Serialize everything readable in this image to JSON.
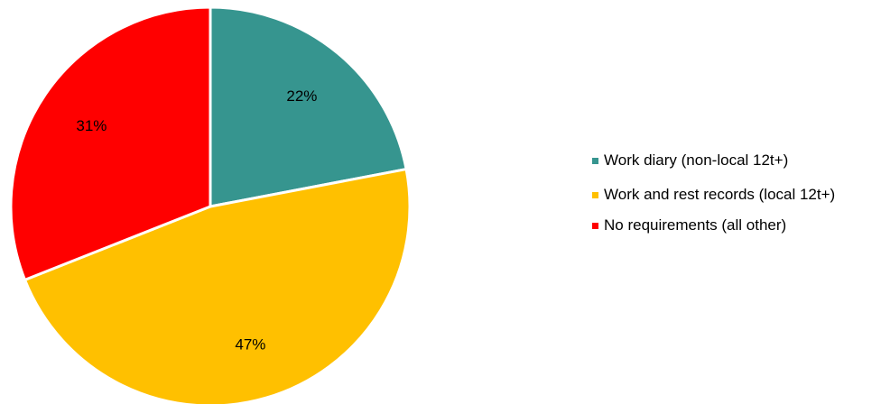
{
  "chart_data": {
    "type": "pie",
    "slices": [
      {
        "name": "Work diary (non-local 12t+)",
        "value": 22,
        "label": "22%",
        "color": "#36958F"
      },
      {
        "name": "Work and rest records (local 12t+)",
        "value": 47,
        "label": "47%",
        "color": "#FFC000"
      },
      {
        "name": "No requirements (all other)",
        "value": 31,
        "label": "31%",
        "color": "#FF0000"
      }
    ],
    "legend_position": "right"
  }
}
